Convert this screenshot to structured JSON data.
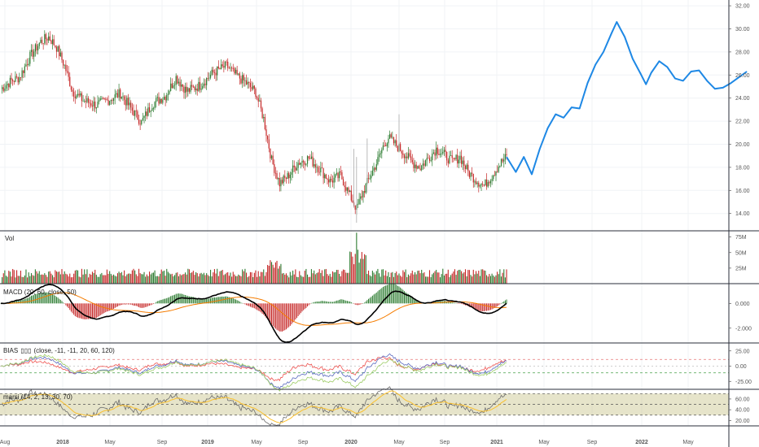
{
  "chart_data": {
    "type": "candlestick",
    "x_axis": {
      "labels": [
        "Aug",
        "2018",
        "May",
        "Sep",
        "2019",
        "May",
        "Sep",
        "2020",
        "May",
        "Sep",
        "2021",
        "May",
        "Sep",
        "2022",
        "May"
      ]
    },
    "price_panel": {
      "y_ticks": [
        "32.00",
        "30.00",
        "28.00",
        "26.00",
        "24.00",
        "22.00",
        "20.00",
        "18.00",
        "16.00",
        "14.00"
      ],
      "ylim": [
        12.5,
        32.5
      ],
      "close_path": [
        {
          "t": 0,
          "v": 24.8
        },
        {
          "t": 8,
          "v": 25.5
        },
        {
          "t": 14,
          "v": 25.8
        },
        {
          "t": 22,
          "v": 27.6
        },
        {
          "t": 30,
          "v": 28.9
        },
        {
          "t": 36,
          "v": 29.3
        },
        {
          "t": 42,
          "v": 28.4
        },
        {
          "t": 48,
          "v": 26.8
        },
        {
          "t": 54,
          "v": 24.6
        },
        {
          "t": 62,
          "v": 23.8
        },
        {
          "t": 72,
          "v": 23.4
        },
        {
          "t": 82,
          "v": 23.9
        },
        {
          "t": 90,
          "v": 24.4
        },
        {
          "t": 98,
          "v": 23.1
        },
        {
          "t": 106,
          "v": 21.9
        },
        {
          "t": 114,
          "v": 23.5
        },
        {
          "t": 124,
          "v": 24.2
        },
        {
          "t": 132,
          "v": 25.8
        },
        {
          "t": 140,
          "v": 24.6
        },
        {
          "t": 150,
          "v": 25.1
        },
        {
          "t": 160,
          "v": 26.2
        },
        {
          "t": 170,
          "v": 26.8
        },
        {
          "t": 176,
          "v": 26.1
        },
        {
          "t": 184,
          "v": 25.4
        },
        {
          "t": 192,
          "v": 24.5
        },
        {
          "t": 198,
          "v": 22.2
        },
        {
          "t": 204,
          "v": 18.6
        },
        {
          "t": 210,
          "v": 16.6
        },
        {
          "t": 216,
          "v": 17.2
        },
        {
          "t": 224,
          "v": 18.4
        },
        {
          "t": 232,
          "v": 18.8
        },
        {
          "t": 240,
          "v": 17.9
        },
        {
          "t": 248,
          "v": 16.8
        },
        {
          "t": 256,
          "v": 17.3
        },
        {
          "t": 262,
          "v": 15.8
        },
        {
          "t": 268,
          "v": 14.4
        },
        {
          "t": 272,
          "v": 15.6
        },
        {
          "t": 278,
          "v": 17.2
        },
        {
          "t": 284,
          "v": 18.6
        },
        {
          "t": 288,
          "v": 19.8
        },
        {
          "t": 292,
          "v": 20.6
        },
        {
          "t": 298,
          "v": 19.9
        },
        {
          "t": 304,
          "v": 19.2
        },
        {
          "t": 310,
          "v": 18.4
        },
        {
          "t": 316,
          "v": 18.0
        },
        {
          "t": 322,
          "v": 18.8
        },
        {
          "t": 328,
          "v": 19.6
        },
        {
          "t": 334,
          "v": 19.1
        },
        {
          "t": 340,
          "v": 18.5
        },
        {
          "t": 346,
          "v": 18.9
        },
        {
          "t": 352,
          "v": 17.6
        },
        {
          "t": 358,
          "v": 16.9
        },
        {
          "t": 364,
          "v": 16.4
        },
        {
          "t": 370,
          "v": 17.3
        },
        {
          "t": 376,
          "v": 18.3
        },
        {
          "t": 381,
          "v": 18.9
        }
      ],
      "projection": [
        {
          "t": 381,
          "v": 18.9
        },
        {
          "t": 388,
          "v": 17.6
        },
        {
          "t": 394,
          "v": 18.9
        },
        {
          "t": 400,
          "v": 17.4
        },
        {
          "t": 406,
          "v": 19.6
        },
        {
          "t": 412,
          "v": 21.4
        },
        {
          "t": 418,
          "v": 22.6
        },
        {
          "t": 424,
          "v": 22.3
        },
        {
          "t": 430,
          "v": 23.2
        },
        {
          "t": 436,
          "v": 23.1
        },
        {
          "t": 442,
          "v": 25.3
        },
        {
          "t": 448,
          "v": 26.9
        },
        {
          "t": 454,
          "v": 28.0
        },
        {
          "t": 460,
          "v": 29.6
        },
        {
          "t": 464,
          "v": 30.6
        },
        {
          "t": 470,
          "v": 29.3
        },
        {
          "t": 476,
          "v": 27.4
        },
        {
          "t": 482,
          "v": 26.1
        },
        {
          "t": 486,
          "v": 25.2
        },
        {
          "t": 490,
          "v": 26.2
        },
        {
          "t": 496,
          "v": 27.2
        },
        {
          "t": 502,
          "v": 26.7
        },
        {
          "t": 508,
          "v": 25.7
        },
        {
          "t": 514,
          "v": 25.5
        },
        {
          "t": 520,
          "v": 26.3
        },
        {
          "t": 526,
          "v": 26.4
        },
        {
          "t": 532,
          "v": 25.5
        },
        {
          "t": 538,
          "v": 24.8
        },
        {
          "t": 544,
          "v": 24.9
        },
        {
          "t": 550,
          "v": 25.3
        },
        {
          "t": 556,
          "v": 25.8
        },
        {
          "t": 562,
          "v": 26.3
        }
      ]
    },
    "volume_panel": {
      "label": "Vol",
      "y_ticks": [
        "75M",
        "50M",
        "25M"
      ],
      "ylim": [
        0,
        85
      ]
    },
    "macd_panel": {
      "label": "MACD (20, 60, close, 50)",
      "y_ticks": [
        "0.000",
        "-2.000"
      ],
      "ylim": [
        -3.2,
        1.6
      ]
    },
    "bias_panel": {
      "label": "BIAS",
      "label_params": "(close, -11, -11, 20, 60, 120)",
      "y_ticks": [
        "25.00",
        "0.00",
        "-25.00"
      ],
      "ylim": [
        -38,
        38
      ],
      "guide_levels": [
        11,
        -11
      ]
    },
    "rsi_panel": {
      "label": "marsi (14, 2, 13, 30, 70)",
      "y_ticks": [
        "60.00",
        "40.00",
        "20.00"
      ],
      "ylim": [
        10,
        78
      ],
      "band": [
        30,
        70
      ],
      "mid": 50
    },
    "colors": {
      "up": "#26a69a",
      "up_candle": "#2e7d32",
      "down": "#c62828",
      "projection": "#1e88e5",
      "macd_line": "#000000",
      "signal_line": "#f57c00",
      "rsi_band": "#c8c48a"
    }
  }
}
